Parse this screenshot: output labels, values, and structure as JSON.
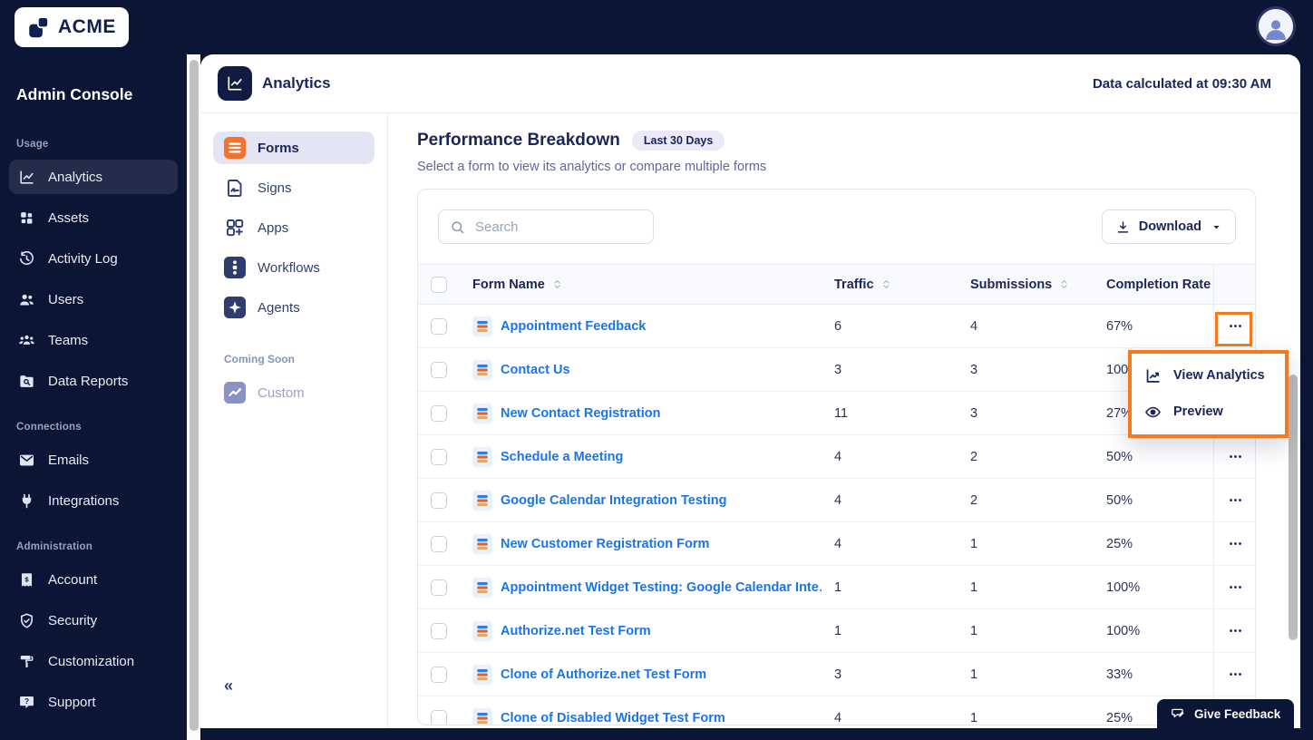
{
  "topbar": {
    "logo_text": "ACME",
    "logo_icon": "logo-mark",
    "avatar_icon": "person"
  },
  "admin_sidebar": {
    "title": "Admin Console",
    "sections": [
      {
        "label": "Usage",
        "items": [
          {
            "label": "Analytics",
            "icon": "analytics",
            "active": true,
            "name": "sidebar-item-analytics"
          },
          {
            "label": "Assets",
            "icon": "assets",
            "name": "sidebar-item-assets"
          },
          {
            "label": "Activity Log",
            "icon": "activity-log",
            "name": "sidebar-item-activity-log"
          },
          {
            "label": "Users",
            "icon": "users",
            "name": "sidebar-item-users"
          },
          {
            "label": "Teams",
            "icon": "teams",
            "name": "sidebar-item-teams"
          },
          {
            "label": "Data Reports",
            "icon": "data-reports",
            "name": "sidebar-item-data-reports"
          }
        ]
      },
      {
        "label": "Connections",
        "items": [
          {
            "label": "Emails",
            "icon": "emails",
            "name": "sidebar-item-emails"
          },
          {
            "label": "Integrations",
            "icon": "integrations",
            "name": "sidebar-item-integrations"
          }
        ]
      },
      {
        "label": "Administration",
        "items": [
          {
            "label": "Account",
            "icon": "account",
            "name": "sidebar-item-account"
          },
          {
            "label": "Security",
            "icon": "security",
            "name": "sidebar-item-security"
          },
          {
            "label": "Customization",
            "icon": "customization",
            "name": "sidebar-item-customization"
          },
          {
            "label": "Support",
            "icon": "support",
            "name": "sidebar-item-support"
          }
        ]
      }
    ]
  },
  "panel_header": {
    "title": "Analytics",
    "title_icon": "chart-line",
    "status_text": "Data calculated at 09:30 AM"
  },
  "subnav": {
    "items": [
      {
        "label": "Forms",
        "icon": "forms",
        "active": true,
        "name": "subnav-item-forms"
      },
      {
        "label": "Signs",
        "icon": "signs",
        "name": "subnav-item-signs"
      },
      {
        "label": "Apps",
        "icon": "apps",
        "name": "subnav-item-apps"
      },
      {
        "label": "Workflows",
        "icon": "workflows",
        "name": "subnav-item-workflows"
      },
      {
        "label": "Agents",
        "icon": "agents",
        "name": "subnav-item-agents"
      }
    ],
    "coming_soon_label": "Coming Soon",
    "coming_soon_items": [
      {
        "label": "Custom",
        "icon": "custom",
        "muted": true,
        "name": "subnav-item-custom"
      }
    ],
    "collapse_glyph": "«"
  },
  "content": {
    "title": "Performance Breakdown",
    "badge": "Last 30 Days",
    "subtitle": "Select a form to view its analytics or compare multiple forms",
    "search": {
      "placeholder": "Search",
      "icon": "search"
    },
    "download_label": "Download",
    "download_icon": "download",
    "download_caret_icon": "caret-down",
    "table": {
      "columns": {
        "name": "Form Name",
        "traffic": "Traffic",
        "submissions": "Submissions",
        "completion": "Completion Rate"
      },
      "sort_icon": "sort",
      "row_icon": "form-doc",
      "row_action_icon": "ellipsis",
      "rows": [
        {
          "name": "Appointment Feedback",
          "traffic": "6",
          "submissions": "4",
          "completion": "67%"
        },
        {
          "name": "Contact Us",
          "traffic": "3",
          "submissions": "3",
          "completion": "100%"
        },
        {
          "name": "New Contact Registration",
          "traffic": "11",
          "submissions": "3",
          "completion": "27%"
        },
        {
          "name": "Schedule a Meeting",
          "traffic": "4",
          "submissions": "2",
          "completion": "50%"
        },
        {
          "name": "Google Calendar Integration Testing",
          "traffic": "4",
          "submissions": "2",
          "completion": "50%"
        },
        {
          "name": "New Customer Registration Form",
          "traffic": "4",
          "submissions": "1",
          "completion": "25%"
        },
        {
          "name": "Appointment Widget Testing: Google Calendar Inte…",
          "traffic": "1",
          "submissions": "1",
          "completion": "100%"
        },
        {
          "name": "Authorize.net Test Form",
          "traffic": "1",
          "submissions": "1",
          "completion": "100%"
        },
        {
          "name": "Clone of Authorize.net Test Form",
          "traffic": "3",
          "submissions": "1",
          "completion": "33%"
        },
        {
          "name": "Clone of Disabled Widget Test Form",
          "traffic": "4",
          "submissions": "1",
          "completion": "25%"
        }
      ]
    },
    "context_menu": {
      "items": [
        {
          "label": "View Analytics",
          "icon": "view-analytics",
          "name": "menu-item-view-analytics"
        },
        {
          "label": "Preview",
          "icon": "preview",
          "name": "menu-item-preview"
        }
      ]
    }
  },
  "feedback": {
    "label": "Give Feedback",
    "icon": "feedback"
  },
  "colors": {
    "sidebar_navy": "#0b1535",
    "annotation_orange": "#f6791d",
    "link_blue": "#1a75e8",
    "accent_orange": "#f4732c",
    "dark_text": "#1b2559",
    "active_subnav_bg": "#e3e5f4"
  }
}
